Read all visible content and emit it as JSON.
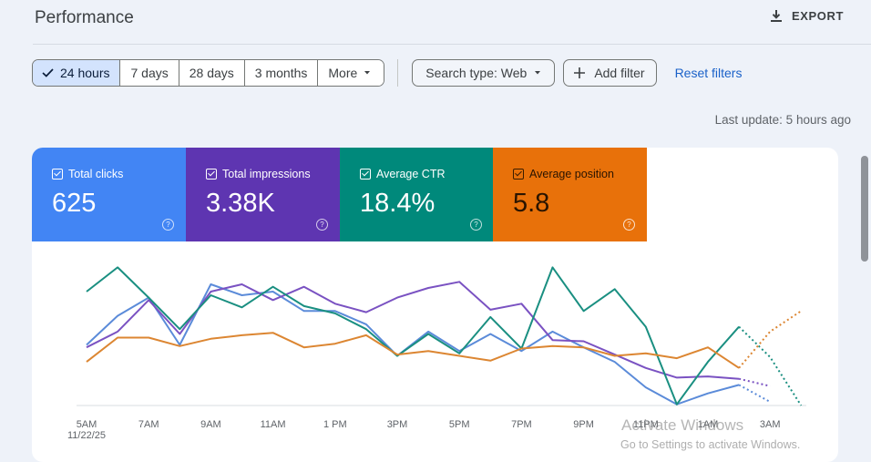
{
  "header": {
    "title": "Performance",
    "export_label": "EXPORT"
  },
  "filters": {
    "date_ranges": [
      "24 hours",
      "7 days",
      "28 days",
      "3 months",
      "More"
    ],
    "selected": "24 hours",
    "search_type": "Search type: Web",
    "add_filter": "Add filter",
    "reset": "Reset filters"
  },
  "last_update": "Last update: 5 hours ago",
  "metrics": [
    {
      "label": "Total clicks",
      "value": "625",
      "color": "#4285f4"
    },
    {
      "label": "Total impressions",
      "value": "3.38K",
      "color": "#5e35b1"
    },
    {
      "label": "Average CTR",
      "value": "18.4%",
      "color": "#00897b"
    },
    {
      "label": "Average position",
      "value": "5.8",
      "color": "#e8710a"
    }
  ],
  "watermark": {
    "line1": "Activate Windows",
    "line2": "Go to Settings to activate Windows."
  },
  "chart_data": {
    "type": "line",
    "categories": [
      "5AM",
      "6AM",
      "7AM",
      "8AM",
      "9AM",
      "10AM",
      "11AM",
      "12PM",
      "1PM",
      "2PM",
      "3PM",
      "4PM",
      "5PM",
      "6PM",
      "7PM",
      "8PM",
      "9PM",
      "10PM",
      "11PM",
      "12AM",
      "1AM",
      "2AM",
      "3AM",
      "4AM"
    ],
    "x_tick_labels": [
      {
        "index": 0,
        "label": "5AM",
        "sub": "11/22/25"
      },
      {
        "index": 2,
        "label": "7AM"
      },
      {
        "index": 4,
        "label": "9AM"
      },
      {
        "index": 6,
        "label": "11AM"
      },
      {
        "index": 8,
        "label": "1 PM"
      },
      {
        "index": 10,
        "label": "3PM"
      },
      {
        "index": 12,
        "label": "5PM"
      },
      {
        "index": 14,
        "label": "7PM"
      },
      {
        "index": 16,
        "label": "9PM"
      },
      {
        "index": 18,
        "label": "11PM"
      },
      {
        "index": 20,
        "label": "1AM"
      },
      {
        "index": 22,
        "label": "3AM"
      }
    ],
    "partial_from_index": 21,
    "series": [
      {
        "name": "Total clicks",
        "color": "#5b8bd9",
        "scale": [
          0,
          10
        ],
        "values": [
          5.0,
          7.4,
          8.9,
          5.0,
          10.0,
          9.1,
          9.4,
          7.8,
          7.8,
          6.7,
          4.1,
          6.1,
          4.5,
          5.9,
          4.5,
          6.1,
          4.8,
          3.6,
          1.5,
          0.1,
          1.0,
          1.7,
          0.3,
          null
        ]
      },
      {
        "name": "Total impressions",
        "color": "#7a52c2",
        "scale": [
          0,
          10
        ],
        "values": [
          4.8,
          6.1,
          8.7,
          5.9,
          9.4,
          10.0,
          8.7,
          9.8,
          8.4,
          7.7,
          8.9,
          9.7,
          10.2,
          7.9,
          8.4,
          5.4,
          5.3,
          4.2,
          3.1,
          2.3,
          2.4,
          2.2,
          1.6,
          null
        ]
      },
      {
        "name": "Average CTR",
        "color": "#1a8f81",
        "scale": [
          0,
          10
        ],
        "values": [
          9.4,
          11.4,
          8.9,
          6.3,
          9.1,
          8.1,
          9.8,
          8.2,
          7.6,
          6.3,
          4.1,
          5.9,
          4.3,
          7.3,
          4.7,
          11.4,
          7.8,
          9.6,
          6.5,
          0.1,
          3.6,
          6.5,
          4.0,
          0.0
        ]
      },
      {
        "name": "Average position",
        "color": "#dc8632",
        "scale": [
          0,
          10
        ],
        "values": [
          3.6,
          5.6,
          5.6,
          4.9,
          5.5,
          5.8,
          6.0,
          4.8,
          5.1,
          5.8,
          4.2,
          4.5,
          4.1,
          3.7,
          4.7,
          4.9,
          4.8,
          4.1,
          4.3,
          3.9,
          4.8,
          3.1,
          6.1,
          7.8
        ]
      }
    ]
  }
}
